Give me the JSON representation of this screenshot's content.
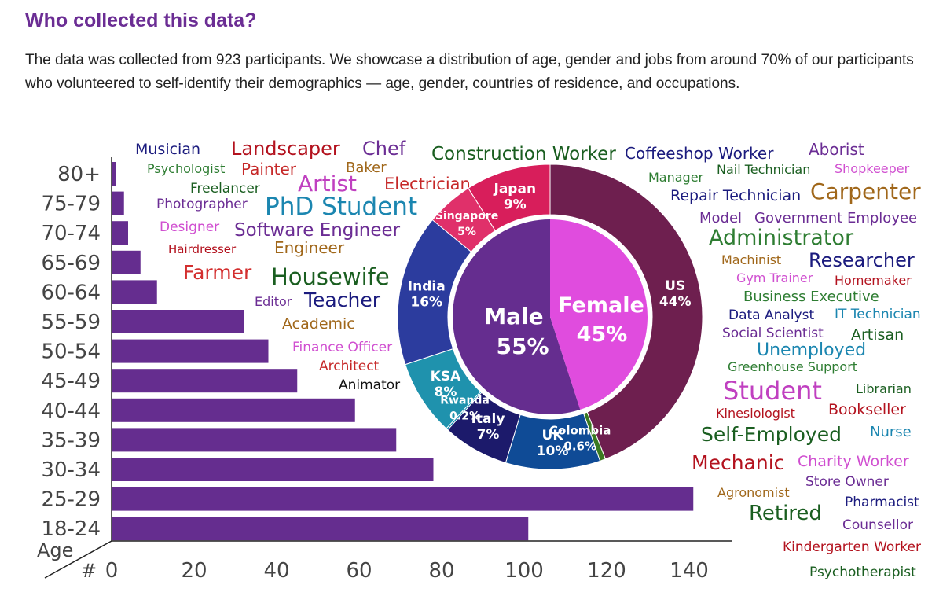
{
  "heading": "Who collected this data?",
  "description": "The data was collected from 923 participants. We showcase a distribution of age, gender and jobs from around 70% of our participants who volunteered to self-identify their demographics — age, gender, countries of residence, and occupations.",
  "chart_data": [
    {
      "type": "bar",
      "orientation": "horizontal",
      "categories": [
        "80+",
        "75-79",
        "70-74",
        "65-69",
        "60-64",
        "55-59",
        "50-54",
        "45-49",
        "40-44",
        "35-39",
        "30-34",
        "25-29",
        "18-24"
      ],
      "values": [
        1,
        3,
        4,
        7,
        11,
        32,
        38,
        45,
        59,
        69,
        78,
        141,
        101
      ],
      "xlabel": "#",
      "ylabel": "Age",
      "xticks": [
        "0",
        "20",
        "40",
        "60",
        "80",
        "100",
        "120",
        "140"
      ],
      "xlim": [
        0,
        150
      ],
      "color": "#652d8f"
    },
    {
      "type": "pie",
      "title": "",
      "labels": [
        "Male",
        "Female"
      ],
      "values": [
        55,
        45
      ],
      "value_labels": [
        "55%",
        "45%"
      ],
      "colors": [
        "#652d8f",
        "#e04cde"
      ]
    },
    {
      "type": "pie",
      "variant": "donut",
      "labels": [
        "US",
        "Colombia",
        "UK",
        "Italy",
        "Rwanda",
        "KSA",
        "India",
        "Singapore",
        "Japan"
      ],
      "values": [
        44,
        0.6,
        10,
        7,
        0.2,
        8,
        16,
        5,
        9
      ],
      "value_labels": [
        "44%",
        "0.6%",
        "10%",
        "7%",
        "0.2%",
        "8%",
        "16%",
        "5%",
        "9%"
      ],
      "colors": [
        "#6e1f4f",
        "#3a7a21",
        "#0f4b96",
        "#1c1a6b",
        "#0d8ab0",
        "#1f92ad",
        "#2c3c9e",
        "#e0306a",
        "#d81e5b"
      ]
    },
    {
      "type": "wordcloud",
      "words": [
        {
          "text": "Musician",
          "color": "#1b1b7e"
        },
        {
          "text": "Landscaper",
          "color": "#b3121e"
        },
        {
          "text": "Chef",
          "color": "#6b2d94"
        },
        {
          "text": "Construction Worker",
          "color": "#1a5e20"
        },
        {
          "text": "Coffeeshop Worker",
          "color": "#1b1b7e"
        },
        {
          "text": "Aborist",
          "color": "#6b2d94"
        },
        {
          "text": "Psychologist",
          "color": "#2e7d32"
        },
        {
          "text": "Painter",
          "color": "#c62828"
        },
        {
          "text": "Baker",
          "color": "#a0671a"
        },
        {
          "text": "Manager",
          "color": "#2e7d32"
        },
        {
          "text": "Nail Technician",
          "color": "#1a5e20"
        },
        {
          "text": "Shopkeeper",
          "color": "#d04fd0"
        },
        {
          "text": "Freelancer",
          "color": "#1a5e20"
        },
        {
          "text": "Artist",
          "color": "#c040c0"
        },
        {
          "text": "Electrician",
          "color": "#c62828"
        },
        {
          "text": "Repair Technician",
          "color": "#1b1b7e"
        },
        {
          "text": "Carpenter",
          "color": "#a0671a"
        },
        {
          "text": "Photographer",
          "color": "#6b2d94"
        },
        {
          "text": "PhD Student",
          "color": "#1b86b0"
        },
        {
          "text": "Model",
          "color": "#6b2d94"
        },
        {
          "text": "Government Employee",
          "color": "#6b2d94"
        },
        {
          "text": "Designer",
          "color": "#d04fd0"
        },
        {
          "text": "Software Engineer",
          "color": "#6b2d94"
        },
        {
          "text": "Administrator",
          "color": "#2e7d32"
        },
        {
          "text": "Hairdresser",
          "color": "#b3121e"
        },
        {
          "text": "Engineer",
          "color": "#a0671a"
        },
        {
          "text": "Machinist",
          "color": "#a0671a"
        },
        {
          "text": "Researcher",
          "color": "#1b1b7e"
        },
        {
          "text": "Farmer",
          "color": "#d32f2f"
        },
        {
          "text": "Housewife",
          "color": "#1a5e20"
        },
        {
          "text": "Gym Trainer",
          "color": "#d04fd0"
        },
        {
          "text": "Homemaker",
          "color": "#b3121e"
        },
        {
          "text": "Editor",
          "color": "#6b2d94"
        },
        {
          "text": "Teacher",
          "color": "#1b1b7e"
        },
        {
          "text": "Business Executive",
          "color": "#2e7d32"
        },
        {
          "text": "Data Analyst",
          "color": "#1b1b7e"
        },
        {
          "text": "IT Technician",
          "color": "#1b86b0"
        },
        {
          "text": "Academic",
          "color": "#a0671a"
        },
        {
          "text": "Social Scientist",
          "color": "#6b2d94"
        },
        {
          "text": "Artisan",
          "color": "#1a5e20"
        },
        {
          "text": "Finance Officer",
          "color": "#d04fd0"
        },
        {
          "text": "Unemployed",
          "color": "#1b86b0"
        },
        {
          "text": "Architect",
          "color": "#c62828"
        },
        {
          "text": "Greenhouse Support",
          "color": "#2e7d32"
        },
        {
          "text": "Animator",
          "color": "#111111"
        },
        {
          "text": "Student",
          "color": "#c040c0"
        },
        {
          "text": "Librarian",
          "color": "#1a5e20"
        },
        {
          "text": "Kinesiologist",
          "color": "#b3121e"
        },
        {
          "text": "Bookseller",
          "color": "#b3121e"
        },
        {
          "text": "Self-Employed",
          "color": "#1a5e20"
        },
        {
          "text": "Nurse",
          "color": "#1b86b0"
        },
        {
          "text": "Mechanic",
          "color": "#b3121e"
        },
        {
          "text": "Charity Worker",
          "color": "#d04fd0"
        },
        {
          "text": "Store Owner",
          "color": "#6b2d94"
        },
        {
          "text": "Agronomist",
          "color": "#a0671a"
        },
        {
          "text": "Pharmacist",
          "color": "#1b1b7e"
        },
        {
          "text": "Retired",
          "color": "#1a5e20"
        },
        {
          "text": "Counsellor",
          "color": "#6b2d94"
        },
        {
          "text": "Kindergarten Worker",
          "color": "#b3121e"
        },
        {
          "text": "Psychotherapist",
          "color": "#1a5e20"
        }
      ]
    }
  ]
}
